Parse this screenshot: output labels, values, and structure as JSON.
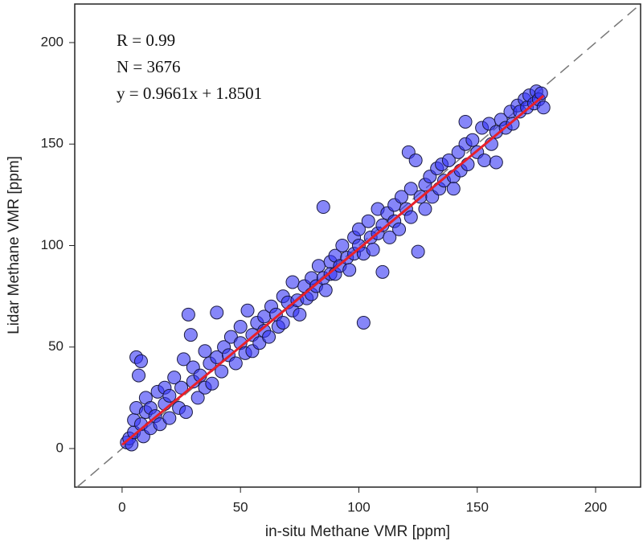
{
  "chart_data": {
    "type": "scatter",
    "xlabel": "in-situ Methane VMR [ppm]",
    "ylabel": "Lidar Methane VMR [ppm]",
    "annotations": [
      "R = 0.99",
      "N = 3676",
      "y = 0.9661x + 1.8501"
    ],
    "xlim": [
      -20,
      219
    ],
    "ylim": [
      -19,
      219
    ],
    "xticks": [
      0,
      50,
      100,
      150,
      200
    ],
    "yticks": [
      0,
      50,
      100,
      150,
      200
    ],
    "color": "#3535f5",
    "x": [
      2,
      3,
      4,
      5,
      5,
      6,
      7,
      8,
      6,
      8,
      9,
      10,
      10,
      12,
      12,
      14,
      15,
      16,
      18,
      18,
      20,
      20,
      22,
      24,
      25,
      26,
      28,
      29,
      27,
      30,
      30,
      32,
      33,
      35,
      35,
      37,
      38,
      40,
      40,
      42,
      43,
      45,
      46,
      48,
      50,
      50,
      52,
      53,
      55,
      55,
      57,
      58,
      60,
      60,
      62,
      63,
      65,
      66,
      68,
      68,
      70,
      72,
      72,
      74,
      75,
      77,
      78,
      80,
      80,
      82,
      83,
      85,
      85,
      86,
      88,
      88,
      90,
      90,
      92,
      93,
      95,
      96,
      98,
      98,
      100,
      100,
      102,
      102,
      104,
      105,
      106,
      108,
      108,
      110,
      110,
      112,
      113,
      115,
      115,
      117,
      118,
      120,
      121,
      122,
      122,
      124,
      125,
      126,
      128,
      128,
      130,
      131,
      133,
      134,
      135,
      136,
      138,
      140,
      140,
      142,
      143,
      145,
      145,
      146,
      148,
      150,
      152,
      153,
      155,
      156,
      158,
      158,
      160,
      162,
      164,
      165,
      167,
      168,
      170,
      171,
      172,
      174,
      175,
      176,
      177,
      178
    ],
    "values": [
      3,
      5,
      2,
      8,
      14,
      45,
      36,
      43,
      20,
      12,
      6,
      18,
      25,
      10,
      20,
      16,
      28,
      12,
      22,
      30,
      15,
      26,
      35,
      20,
      30,
      44,
      66,
      56,
      18,
      33,
      40,
      25,
      36,
      48,
      30,
      42,
      32,
      67,
      45,
      38,
      50,
      46,
      55,
      42,
      52,
      60,
      47,
      68,
      56,
      48,
      62,
      52,
      65,
      58,
      55,
      70,
      66,
      60,
      75,
      62,
      72,
      68,
      82,
      73,
      66,
      80,
      74,
      84,
      76,
      80,
      90,
      119,
      84,
      78,
      92,
      86,
      95,
      86,
      90,
      100,
      94,
      88,
      104,
      96,
      100,
      108,
      62,
      96,
      112,
      104,
      98,
      118,
      106,
      87,
      110,
      116,
      104,
      120,
      112,
      108,
      124,
      118,
      146,
      128,
      114,
      142,
      97,
      124,
      130,
      118,
      134,
      124,
      138,
      128,
      140,
      132,
      142,
      134,
      128,
      146,
      137,
      161,
      150,
      140,
      152,
      146,
      158,
      142,
      160,
      150,
      141,
      156,
      162,
      158,
      166,
      160,
      169,
      166,
      172,
      168,
      174,
      170,
      176,
      172,
      175,
      168
    ],
    "fit": {
      "x": [
        0,
        178
      ],
      "values": [
        1.85,
        173.8
      ],
      "color": "#e8202a"
    }
  }
}
